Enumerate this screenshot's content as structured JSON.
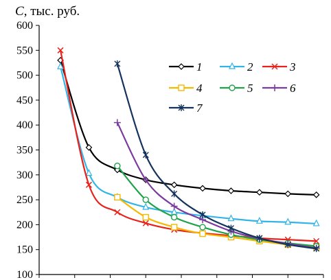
{
  "chart_data": {
    "type": "line",
    "ylabel_var": "C",
    "ylabel_rest": ", тыс. руб.",
    "ylim": [
      100,
      600
    ],
    "yticks": [
      100,
      150,
      200,
      250,
      300,
      350,
      400,
      450,
      500,
      550,
      600
    ],
    "xlim": [
      0,
      8
    ],
    "xticks": [
      0,
      1,
      2,
      3,
      4,
      5,
      6,
      7,
      8
    ],
    "grid": false,
    "legend_placement": "top-right",
    "series": [
      {
        "name": "1",
        "color": "#000000",
        "marker": "diamond",
        "x": [
          0.6,
          1.4,
          2.2,
          3.0,
          3.8,
          4.6,
          5.4,
          6.2,
          7.0,
          7.8
        ],
        "y": [
          530,
          355,
          310,
          290,
          280,
          273,
          268,
          265,
          262,
          260
        ]
      },
      {
        "name": "2",
        "color": "#33b4e6",
        "marker": "triangle",
        "x": [
          0.6,
          1.4,
          2.2,
          3.0,
          3.8,
          4.6,
          5.4,
          6.2,
          7.0,
          7.8
        ],
        "y": [
          517,
          303,
          255,
          235,
          225,
          218,
          212,
          207,
          205,
          202
        ]
      },
      {
        "name": "3",
        "color": "#e8221a",
        "marker": "x",
        "x": [
          0.6,
          1.4,
          2.2,
          3.0,
          3.8,
          4.6,
          5.4,
          6.2,
          7.0,
          7.8
        ],
        "y": [
          550,
          280,
          225,
          203,
          190,
          183,
          178,
          173,
          170,
          167
        ]
      },
      {
        "name": "4",
        "color": "#f5b800",
        "marker": "square",
        "x": [
          2.2,
          3.0,
          3.8,
          4.6,
          5.4,
          6.2,
          7.0,
          7.8
        ],
        "y": [
          255,
          215,
          195,
          182,
          175,
          167,
          160,
          155
        ]
      },
      {
        "name": "5",
        "color": "#1fa24a",
        "marker": "circle",
        "x": [
          2.2,
          3.0,
          3.8,
          4.6,
          5.4,
          6.2,
          7.0,
          7.8
        ],
        "y": [
          318,
          250,
          215,
          195,
          180,
          170,
          163,
          157
        ]
      },
      {
        "name": "6",
        "color": "#7b3a9c",
        "marker": "plus",
        "x": [
          2.2,
          3.0,
          3.8,
          4.6,
          5.4,
          6.2,
          7.0,
          7.8
        ],
        "y": [
          405,
          290,
          237,
          210,
          187,
          172,
          162,
          153
        ]
      },
      {
        "name": "7",
        "color": "#14335c",
        "marker": "star",
        "x": [
          2.2,
          3.0,
          3.8,
          4.6,
          5.4,
          6.2,
          7.0,
          7.8
        ],
        "y": [
          523,
          340,
          262,
          220,
          193,
          173,
          160,
          152
        ]
      }
    ]
  }
}
